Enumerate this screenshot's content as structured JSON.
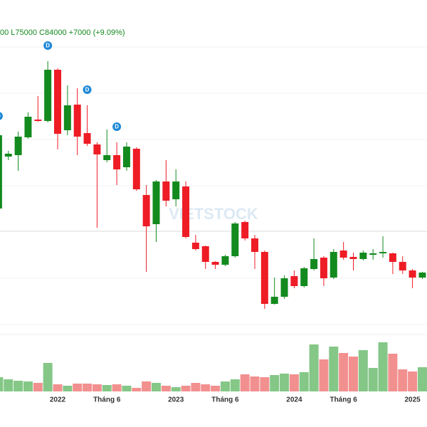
{
  "chart_data": {
    "type": "candlestick",
    "header": "00 L75000 C84000 +7000 (+9.09%)",
    "watermark": "VIETSTOCK",
    "categories": [
      null,
      null,
      null,
      null,
      null,
      null,
      "2022",
      null,
      null,
      null,
      null,
      "Tháng 6",
      null,
      null,
      null,
      null,
      null,
      null,
      "2023",
      null,
      null,
      null,
      null,
      "Tháng 6",
      null,
      null,
      null,
      null,
      null,
      null,
      "2024",
      null,
      null,
      null,
      null,
      "Tháng 6",
      null,
      null,
      null,
      null,
      null,
      null,
      "2025",
      null
    ],
    "open": [
      174000,
      247000,
      249000,
      274000,
      299000,
      297000,
      369000,
      284000,
      320000,
      280000,
      264000,
      242000,
      249000,
      232000,
      258000,
      193000,
      152000,
      212000,
      187000,
      205000,
      126000,
      121000,
      99000,
      95000,
      107000,
      155000,
      132000,
      113000,
      40000,
      50000,
      79000,
      65000,
      89000,
      105000,
      77000,
      115000,
      106000,
      103000,
      109000,
      111000,
      111000,
      99000,
      87000,
      77000
    ],
    "high": [
      282000,
      255000,
      282000,
      309000,
      332000,
      381000,
      371000,
      347000,
      343000,
      319000,
      267000,
      285000,
      267000,
      267000,
      260000,
      207000,
      214000,
      242000,
      229000,
      212000,
      137000,
      122000,
      100000,
      109000,
      155000,
      157000,
      137000,
      115000,
      77000,
      80000,
      87000,
      92000,
      132000,
      107000,
      117000,
      127000,
      112000,
      115000,
      117000,
      135000,
      112000,
      107000,
      89000,
      85000
    ],
    "low": [
      172000,
      242000,
      227000,
      272000,
      296000,
      295000,
      257000,
      277000,
      249000,
      262000,
      147000,
      239000,
      207000,
      227000,
      199000,
      85000,
      127000,
      177000,
      177000,
      132000,
      115000,
      89000,
      89000,
      93000,
      105000,
      129000,
      89000,
      33000,
      39000,
      47000,
      62000,
      63000,
      87000,
      65000,
      75000,
      102000,
      87000,
      101000,
      102000,
      105000,
      82000,
      82000,
      62000,
      75000
    ],
    "close": [
      277000,
      251000,
      275000,
      303000,
      297000,
      369000,
      279000,
      319000,
      275000,
      265000,
      250000,
      249000,
      229000,
      261000,
      201000,
      149000,
      212000,
      185000,
      212000,
      134000,
      117000,
      99000,
      95000,
      107000,
      153000,
      132000,
      113000,
      40000,
      50000,
      76000,
      65000,
      90000,
      103000,
      76000,
      113000,
      105000,
      103000,
      112000,
      111000,
      113000,
      99000,
      87000,
      77000,
      84000
    ],
    "volume": [
      2000000,
      1700000,
      1500000,
      1400000,
      1200000,
      4000000,
      1000000,
      800000,
      1100000,
      1100000,
      1000000,
      900000,
      1000000,
      800000,
      500000,
      1400000,
      1200000,
      800000,
      600000,
      800000,
      1200000,
      1000000,
      800000,
      1400000,
      1700000,
      2400000,
      2100000,
      2000000,
      2300000,
      2500000,
      2400000,
      2700000,
      6600000,
      4500000,
      6300000,
      5400000,
      4900000,
      5800000,
      3300000,
      6900000,
      5300000,
      3100000,
      2800000,
      3400000
    ],
    "ylim": [
      0,
      437000
    ],
    "vlim": [
      0,
      7000000
    ],
    "up_color": "#138a1e",
    "down_color": "#ee1c25",
    "vol_up_color": "#84c787",
    "vol_down_color": "#f29090",
    "markers": [
      {
        "label": "D",
        "index": 0
      },
      {
        "label": "D",
        "index": 5
      },
      {
        "label": "D",
        "index": 9
      },
      {
        "label": "D",
        "index": 12
      }
    ]
  }
}
